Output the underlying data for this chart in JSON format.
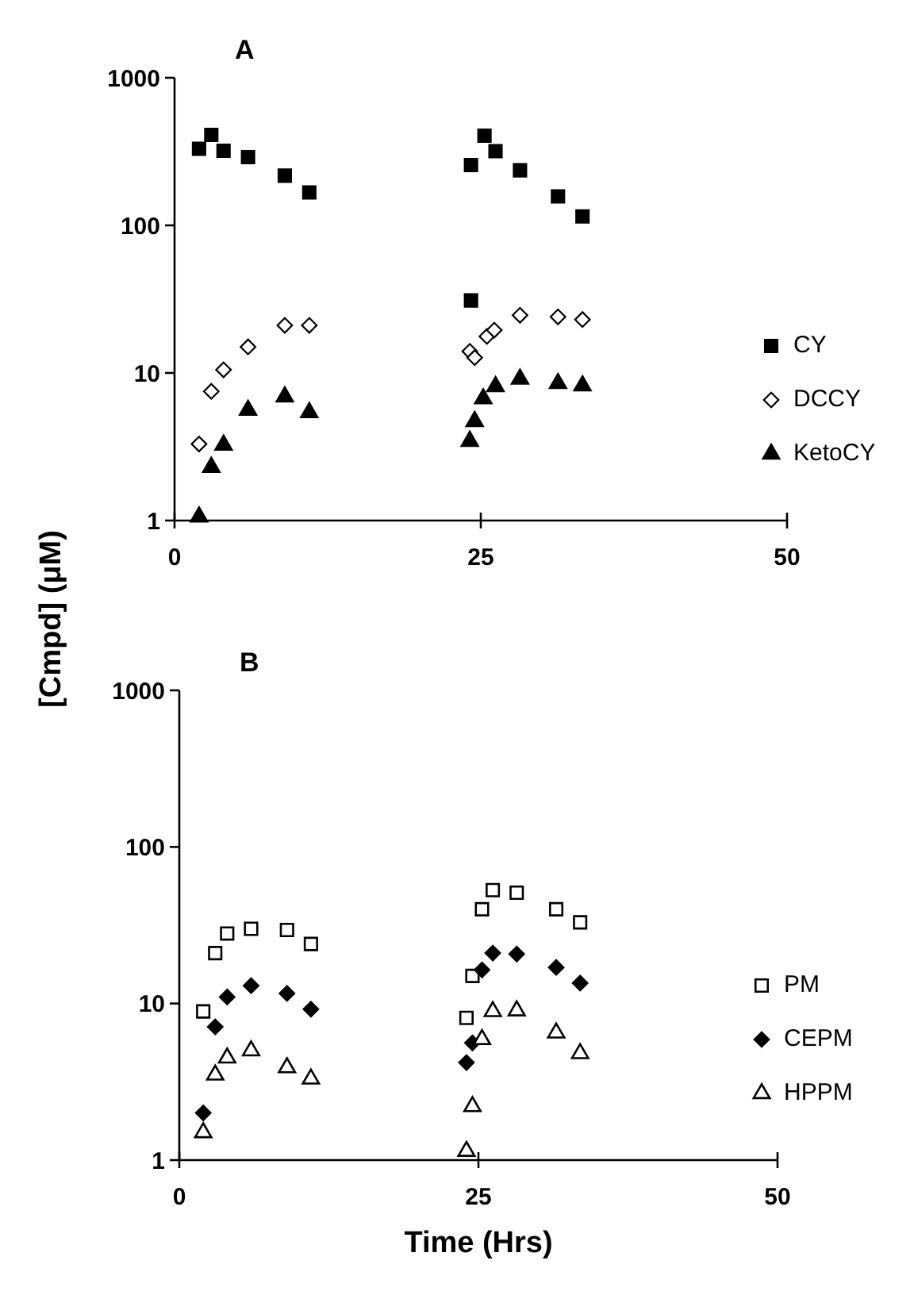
{
  "chart_data": [
    {
      "type": "scatter",
      "title": "A",
      "ylabel": "[Cmpd] (μM)",
      "log": "y",
      "grid": false,
      "legend": "right",
      "xlim": [
        0,
        50
      ],
      "xticks": [
        0,
        25,
        50
      ],
      "ylim": [
        1,
        1000
      ],
      "yticks": [
        1,
        10,
        100,
        1000
      ],
      "series": [
        {
          "name": "CY",
          "color": "#000000",
          "marker": "square",
          "x": [
            2,
            3,
            4,
            6,
            9,
            11,
            24.2,
            24.2,
            25.3,
            26.2,
            28.2,
            31.3,
            33.3
          ],
          "values": [
            330,
            410,
            320,
            290,
            217,
            167,
            31,
            256,
            405,
            318,
            236,
            157,
            115
          ]
        },
        {
          "name": "DCCY",
          "color": "#ffffff",
          "marker": "diamond",
          "x": [
            2,
            3,
            4,
            6,
            9,
            11,
            24.1,
            24.5,
            25.5,
            26.1,
            28.2,
            31.3,
            33.3
          ],
          "values": [
            3.3,
            7.5,
            10.5,
            15,
            21,
            21,
            14,
            12.7,
            17.7,
            19.5,
            24.6,
            24,
            23
          ]
        },
        {
          "name": "KetoCY",
          "color": "#000000",
          "marker": "triangle",
          "x": [
            2,
            3,
            4,
            6,
            9,
            11,
            24.1,
            24.5,
            25.2,
            26.2,
            28.2,
            31.3,
            33.3
          ],
          "values": [
            1.06,
            2.3,
            3.25,
            5.6,
            6.9,
            5.4,
            3.45,
            4.7,
            6.7,
            8.1,
            9.1,
            8.5,
            8.2
          ]
        }
      ]
    },
    {
      "type": "scatter",
      "title": "B",
      "xlabel": "Time (Hrs)",
      "log": "y",
      "grid": false,
      "legend": "right",
      "xlim": [
        0,
        50
      ],
      "xticks": [
        0,
        25,
        50
      ],
      "ylim": [
        1,
        1000
      ],
      "yticks": [
        1,
        10,
        100,
        1000
      ],
      "series": [
        {
          "name": "PM",
          "color": "#ffffff",
          "marker": "square",
          "x": [
            2,
            3,
            4,
            6,
            9,
            11,
            24,
            24.5,
            25.3,
            26.2,
            28.2,
            31.5,
            33.5
          ],
          "values": [
            8.9,
            21,
            28,
            30,
            29.5,
            24,
            8.1,
            15,
            40,
            53,
            51,
            40,
            33
          ]
        },
        {
          "name": "CEPM",
          "color": "#000000",
          "marker": "diamond",
          "x": [
            2,
            3,
            4,
            6,
            9,
            11,
            24,
            24.5,
            25.3,
            26.2,
            28.2,
            31.5,
            33.5
          ],
          "values": [
            2,
            7.1,
            11,
            13,
            11.6,
            9.2,
            4.2,
            5.6,
            16.4,
            21,
            20.7,
            17,
            13.5
          ]
        },
        {
          "name": "HPPM",
          "color": "#ffffff",
          "marker": "triangle",
          "x": [
            2,
            3,
            4,
            6,
            9,
            11,
            24,
            24.5,
            25.3,
            26.2,
            28.2,
            31.5,
            33.5
          ],
          "values": [
            1.5,
            3.5,
            4.5,
            5,
            3.9,
            3.3,
            1.14,
            2.2,
            5.9,
            8.9,
            9,
            6.5,
            4.8
          ]
        }
      ]
    }
  ]
}
